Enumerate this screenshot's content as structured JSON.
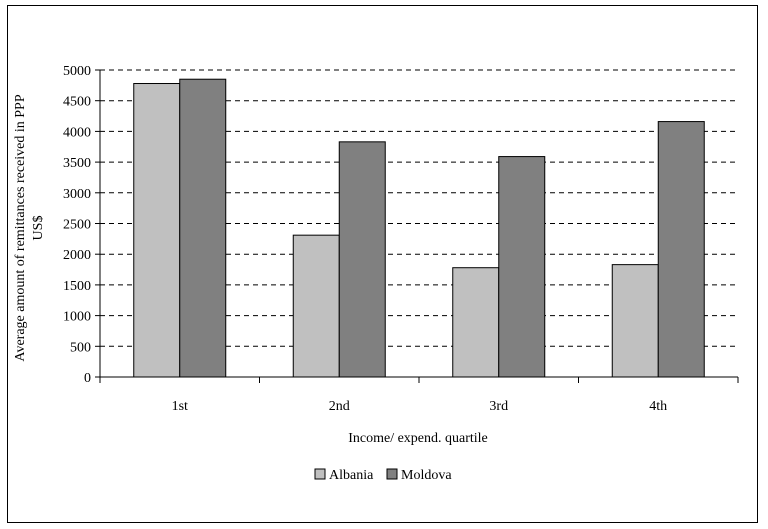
{
  "chart_data": {
    "type": "bar",
    "categories": [
      "1st",
      "2nd",
      "3rd",
      "4th"
    ],
    "series": [
      {
        "name": "Albania",
        "values": [
          4780,
          2310,
          1780,
          1830
        ],
        "color": "#c0c0c0"
      },
      {
        "name": "Moldova",
        "values": [
          4850,
          3830,
          3590,
          4160
        ],
        "color": "#808080"
      }
    ],
    "title": "",
    "xlabel": "Income/ expend. quartile",
    "ylabel": [
      "Average amount of remittances received in PPP",
      "US$"
    ],
    "ylim": [
      0,
      5000
    ],
    "yticks": [
      0,
      500,
      1000,
      1500,
      2000,
      2500,
      3000,
      3500,
      4000,
      4500,
      5000
    ],
    "grid": "horizontal-dashed",
    "legend": "bottom-center"
  }
}
